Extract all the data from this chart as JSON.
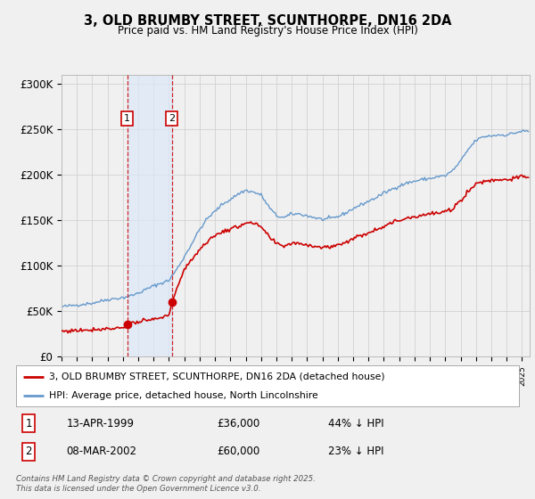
{
  "title": "3, OLD BRUMBY STREET, SCUNTHORPE, DN16 2DA",
  "subtitle": "Price paid vs. HM Land Registry's House Price Index (HPI)",
  "ylim": [
    0,
    310000
  ],
  "yticks": [
    0,
    50000,
    100000,
    150000,
    200000,
    250000,
    300000
  ],
  "ytick_labels": [
    "£0",
    "£50K",
    "£100K",
    "£150K",
    "£200K",
    "£250K",
    "£300K"
  ],
  "xstart": 1995.0,
  "xend": 2025.5,
  "sale1_year": 1999.28,
  "sale1_price": 36000,
  "sale2_year": 2002.18,
  "sale2_price": 60000,
  "legend1": "3, OLD BRUMBY STREET, SCUNTHORPE, DN16 2DA (detached house)",
  "legend2": "HPI: Average price, detached house, North Lincolnshire",
  "note1_label": "1",
  "note1_date": "13-APR-1999",
  "note1_price": "£36,000",
  "note1_hpi": "44% ↓ HPI",
  "note2_label": "2",
  "note2_date": "08-MAR-2002",
  "note2_price": "£60,000",
  "note2_hpi": "23% ↓ HPI",
  "line_color_property": "#cc0000",
  "line_color_hpi": "#6699cc",
  "shade_color": "#dce8f8",
  "footer": "Contains HM Land Registry data © Crown copyright and database right 2025.\nThis data is licensed under the Open Government Licence v3.0.",
  "bg_color": "#f0f0f0",
  "plot_bg_color": "#f0f0f0",
  "grid_color": "#cccccc",
  "hpi_anchors_t": [
    1995.0,
    1996.0,
    1997.0,
    1997.5,
    1998.0,
    1998.5,
    1999.0,
    1999.5,
    2000.0,
    2000.5,
    2001.0,
    2001.5,
    2002.0,
    2002.5,
    2003.0,
    2003.5,
    2004.0,
    2004.5,
    2005.0,
    2005.5,
    2006.0,
    2006.5,
    2007.0,
    2007.5,
    2008.0,
    2008.5,
    2009.0,
    2009.5,
    2010.0,
    2010.5,
    2011.0,
    2011.5,
    2012.0,
    2012.5,
    2013.0,
    2013.5,
    2014.0,
    2014.5,
    2015.0,
    2015.5,
    2016.0,
    2016.5,
    2017.0,
    2017.5,
    2018.0,
    2018.5,
    2019.0,
    2019.5,
    2020.0,
    2020.5,
    2021.0,
    2021.5,
    2022.0,
    2022.5,
    2023.0,
    2023.5,
    2024.0,
    2024.5,
    2025.0
  ],
  "hpi_anchors_v": [
    55000,
    57000,
    59000,
    61000,
    63000,
    64000,
    65000,
    67000,
    70000,
    74000,
    78000,
    81000,
    84000,
    96000,
    110000,
    125000,
    140000,
    152000,
    160000,
    168000,
    173000,
    179000,
    183000,
    181000,
    178000,
    165000,
    155000,
    153000,
    157000,
    157000,
    155000,
    153000,
    151000,
    152000,
    154000,
    158000,
    163000,
    167000,
    171000,
    175000,
    180000,
    184000,
    188000,
    191000,
    193000,
    195000,
    196000,
    198000,
    199000,
    205000,
    215000,
    228000,
    238000,
    242000,
    243000,
    244000,
    244000,
    246000,
    248000
  ],
  "prop_anchors_t": [
    1995.0,
    1996.0,
    1997.0,
    1998.0,
    1999.0,
    1999.28,
    1999.5,
    2000.0,
    2000.5,
    2001.0,
    2001.5,
    2002.0,
    2002.18,
    2002.5,
    2003.0,
    2003.5,
    2004.0,
    2004.5,
    2005.0,
    2005.5,
    2006.0,
    2006.5,
    2007.0,
    2007.5,
    2008.0,
    2008.5,
    2009.0,
    2009.5,
    2010.0,
    2010.5,
    2011.0,
    2011.5,
    2012.0,
    2012.5,
    2013.0,
    2013.5,
    2014.0,
    2014.5,
    2015.0,
    2015.5,
    2016.0,
    2016.5,
    2017.0,
    2017.5,
    2018.0,
    2018.5,
    2019.0,
    2019.5,
    2020.0,
    2020.5,
    2021.0,
    2021.5,
    2022.0,
    2022.5,
    2023.0,
    2023.5,
    2024.0,
    2024.5,
    2025.0
  ],
  "prop_anchors_v": [
    28000,
    29000,
    30000,
    31000,
    32000,
    36000,
    37000,
    38000,
    39500,
    41000,
    43000,
    45000,
    60000,
    75000,
    95000,
    108000,
    118000,
    127000,
    133000,
    138000,
    140000,
    143000,
    148000,
    146000,
    143000,
    132000,
    124000,
    122000,
    125000,
    125000,
    123000,
    122000,
    120000,
    121000,
    123000,
    126000,
    130000,
    133000,
    137000,
    140000,
    144000,
    147000,
    150000,
    153000,
    154000,
    156000,
    157000,
    158000,
    159000,
    163000,
    172000,
    182000,
    190000,
    193000,
    194000,
    195000,
    195000,
    196000,
    198000
  ]
}
